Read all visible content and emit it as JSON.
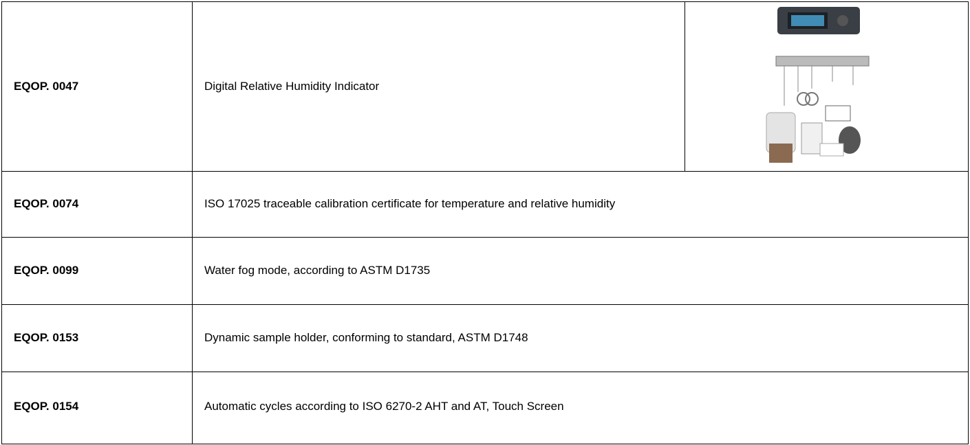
{
  "table": {
    "rows": [
      [
        "EQOP. 0047",
        "Digital Relative Humidity Indicator"
      ],
      [
        "EQOP. 0074",
        "ISO 17025 traceable calibration certificate for temperature and relative humidity"
      ],
      [
        "EQOP. 0099",
        "Water fog mode, according to ASTM D1735"
      ],
      [
        "EQOP. 0153",
        "Dynamic sample holder, conforming to standard, ASTM D1748"
      ],
      [
        "EQOP. 0154",
        "Automatic cycles according to ISO 6270-2 AHT and AT, Touch Screen"
      ]
    ]
  }
}
